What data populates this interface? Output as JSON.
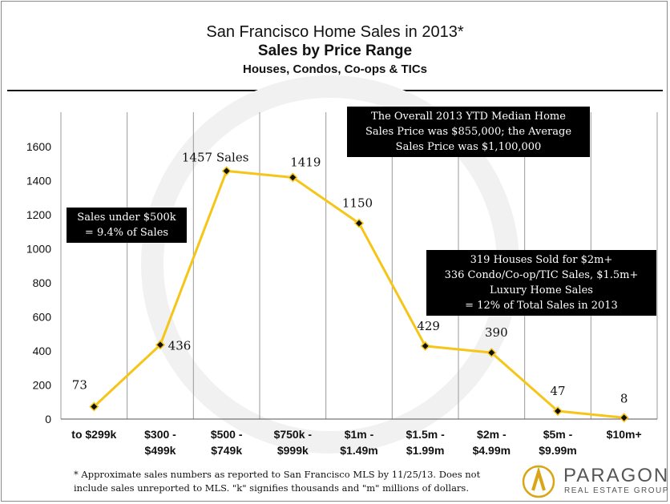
{
  "header": {
    "title": "San Francisco Home Sales in 2013*",
    "subtitle": "Sales by Price Range",
    "subtitle2": "Houses, Condos, Co-ops & TICs"
  },
  "callouts": {
    "under500k": [
      "Sales under $500k",
      "= 9.4% of Sales"
    ],
    "median": [
      "The Overall 2013 YTD Median Home",
      "Sales Price was $855,000; the Average",
      "Sales Price was $1,100,000"
    ],
    "luxury": [
      "319 Houses Sold for $2m+",
      "336 Condo/Co-op/TIC Sales, $1.5m+",
      "Luxury Home Sales",
      "= 12% of Total Sales in 2013"
    ]
  },
  "footnote": [
    "* Approximate sales numbers as reported to San Francisco MLS by 11/25/13. Does not",
    "include sales unreported to MLS. \"k\" signifies thousands and \"m\" millions of dollars."
  ],
  "logo": {
    "name": "PARAGON",
    "tagline": "REAL ESTATE GROUP"
  },
  "colors": {
    "line": "#F5C518",
    "marker": "#111111",
    "grid": "#9a9a9a"
  },
  "chart_data": {
    "type": "line",
    "categories": [
      [
        "to $299k"
      ],
      [
        "$300 -",
        "$499k"
      ],
      [
        "$500 -",
        "$749k"
      ],
      [
        "$750k -",
        "$999k"
      ],
      [
        "$1m -",
        "$1.49m"
      ],
      [
        "$1.5m -",
        "$1.99m"
      ],
      [
        "$2m -",
        "$4.99m"
      ],
      [
        "$5m -",
        "$9.99m"
      ],
      [
        "$10m+"
      ]
    ],
    "values": [
      73,
      436,
      1457,
      1419,
      1150,
      429,
      390,
      47,
      8
    ],
    "data_labels": [
      "73",
      "436",
      "1457 Sales",
      "1419",
      "1150",
      "429",
      "390",
      "47",
      "8"
    ],
    "ylim": [
      0,
      1600
    ],
    "yticks": [
      0,
      200,
      400,
      600,
      800,
      1000,
      1200,
      1400,
      1600
    ],
    "grid": "vertical",
    "legend": "none"
  }
}
